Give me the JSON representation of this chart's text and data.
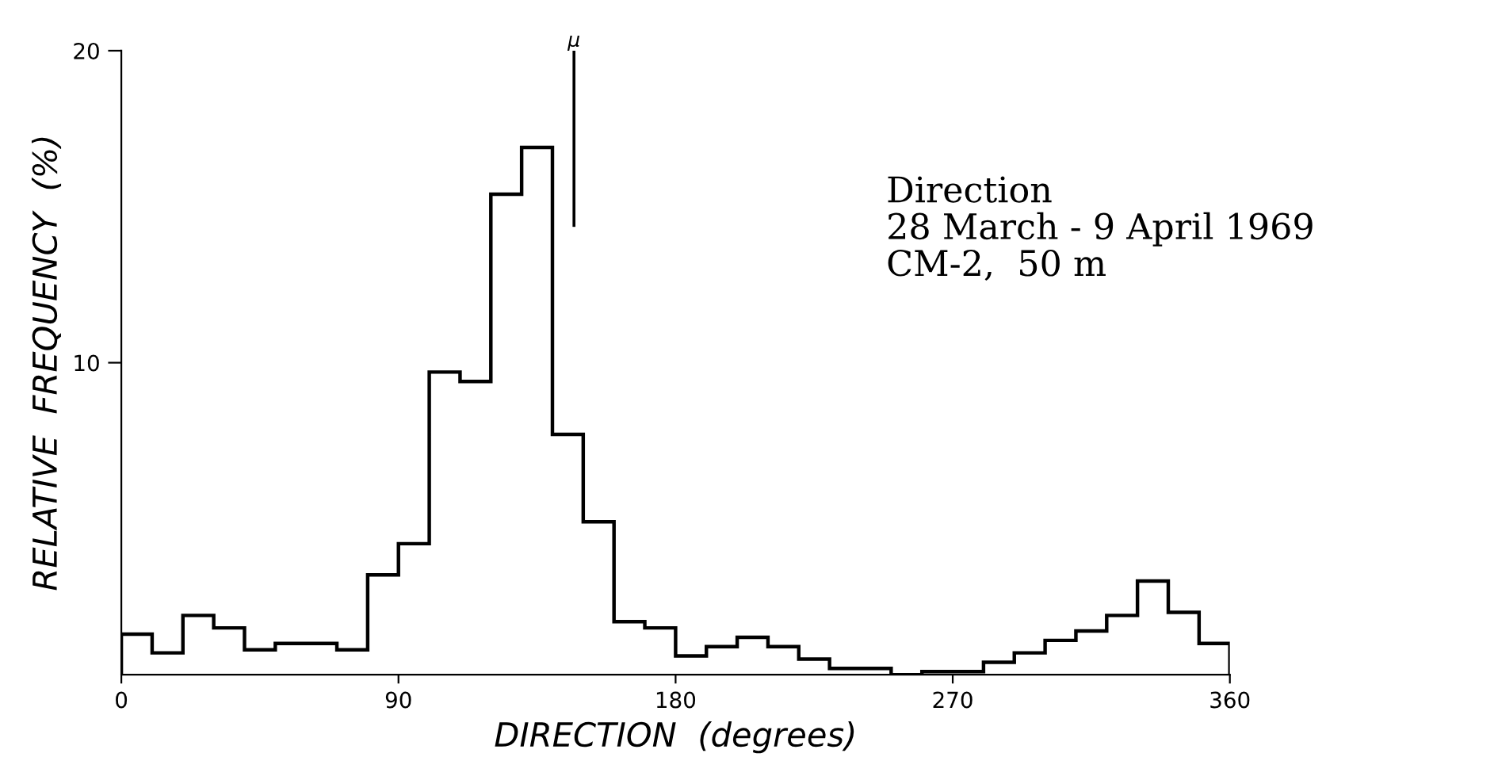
{
  "chart_data": {
    "type": "histogram",
    "xlabel": "DIRECTION  (degrees)",
    "ylabel": "RELATIVE  FREQUENCY  (%)",
    "bins": [
      0,
      10,
      20,
      30,
      40,
      50,
      60,
      70,
      80,
      90,
      100,
      110,
      120,
      130,
      140,
      150,
      160,
      170,
      180,
      190,
      200,
      210,
      220,
      230,
      240,
      250,
      260,
      270,
      280,
      290,
      300,
      310,
      320,
      330,
      340,
      350,
      360
    ],
    "values": [
      1.3,
      0.7,
      1.9,
      1.5,
      0.8,
      1.0,
      1.0,
      0.8,
      3.2,
      4.2,
      9.7,
      9.4,
      15.4,
      16.9,
      7.7,
      4.9,
      1.7,
      1.5,
      0.6,
      0.9,
      1.2,
      0.9,
      0.5,
      0.2,
      0.2,
      0,
      0.1,
      0.1,
      0.4,
      0.7,
      1.1,
      1.4,
      1.9,
      3.0,
      2.0,
      1.0
    ],
    "color": "#000000",
    "xlim": [
      0,
      360
    ],
    "xticks": [
      0,
      90,
      180,
      270,
      360
    ],
    "ylim": [
      0,
      20
    ],
    "yticks": [
      10,
      20
    ],
    "ref_lines": [
      {
        "axis": "x",
        "value": 147,
        "label": "μ"
      }
    ],
    "annotations": [
      "Direction\n28 March - 9 April 1969\nCM-2,  50 m"
    ],
    "grid": false,
    "legend": false
  }
}
